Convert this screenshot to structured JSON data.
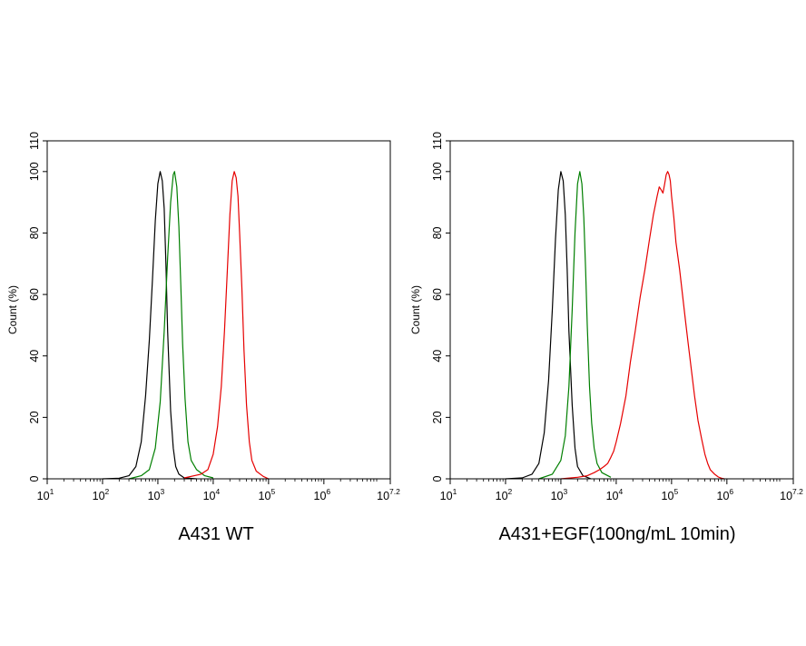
{
  "figure": {
    "background": "#ffffff"
  },
  "chart_data": [
    {
      "type": "line",
      "title": "A431 WT",
      "xlabel": "",
      "ylabel": "Count  (%)",
      "x_scale": "log",
      "xlim": [
        10,
        15848932
      ],
      "ylim": [
        0,
        110
      ],
      "x_ticks": [
        {
          "base": "10",
          "exp": "1"
        },
        {
          "base": "10",
          "exp": "2"
        },
        {
          "base": "10",
          "exp": "3"
        },
        {
          "base": "10",
          "exp": "4"
        },
        {
          "base": "10",
          "exp": "5"
        },
        {
          "base": "10",
          "exp": "6"
        },
        {
          "base": "10",
          "exp": "7.2"
        }
      ],
      "y_ticks": [
        "0",
        "20",
        "40",
        "60",
        "80",
        "100",
        "110"
      ],
      "grid": false,
      "series": [
        {
          "color": "#000000",
          "x": [
            100,
            200,
            300,
            400,
            500,
            600,
            700,
            800,
            900,
            1000,
            1100,
            1200,
            1300,
            1400,
            1500,
            1700,
            1900,
            2100,
            2400,
            3000,
            5000
          ],
          "y": [
            0,
            0.2,
            1,
            4,
            12,
            27,
            45,
            65,
            84,
            96,
            100,
            97,
            88,
            70,
            48,
            22,
            10,
            4,
            1.5,
            0.3,
            0
          ]
        },
        {
          "color": "#007f00",
          "x": [
            300,
            500,
            700,
            900,
            1100,
            1300,
            1500,
            1700,
            1900,
            2000,
            2200,
            2400,
            2600,
            2800,
            3100,
            3500,
            4000,
            5000,
            7000,
            10000
          ],
          "y": [
            0,
            1,
            3,
            10,
            25,
            48,
            72,
            90,
            99,
            100,
            95,
            82,
            63,
            44,
            26,
            12,
            6,
            3,
            1,
            0.3
          ]
        },
        {
          "color": "#e60000",
          "x": [
            3000,
            6000,
            8000,
            10000,
            12000,
            14000,
            16000,
            18000,
            20000,
            22000,
            24000,
            26000,
            28000,
            30000,
            33000,
            36000,
            40000,
            45000,
            50000,
            60000,
            80000,
            100000
          ],
          "y": [
            0.3,
            1.5,
            3,
            8,
            17,
            30,
            48,
            68,
            86,
            97,
            100,
            98,
            92,
            80,
            62,
            42,
            24,
            12,
            6,
            2.5,
            0.8,
            0
          ]
        }
      ]
    },
    {
      "type": "line",
      "title": "A431+EGF(100ng/mL 10min)",
      "xlabel": "",
      "ylabel": "Count  (%)",
      "x_scale": "log",
      "xlim": [
        10,
        15848932
      ],
      "ylim": [
        0,
        110
      ],
      "x_ticks": [
        {
          "base": "10",
          "exp": "1"
        },
        {
          "base": "10",
          "exp": "2"
        },
        {
          "base": "10",
          "exp": "3"
        },
        {
          "base": "10",
          "exp": "4"
        },
        {
          "base": "10",
          "exp": "5"
        },
        {
          "base": "10",
          "exp": "6"
        },
        {
          "base": "10",
          "exp": "7.2"
        }
      ],
      "y_ticks": [
        "0",
        "20",
        "40",
        "60",
        "80",
        "100",
        "110"
      ],
      "grid": false,
      "series": [
        {
          "color": "#000000",
          "x": [
            100,
            200,
            300,
            400,
            500,
            600,
            700,
            800,
            900,
            1000,
            1100,
            1200,
            1300,
            1400,
            1600,
            1800,
            2000,
            2500,
            3500
          ],
          "y": [
            0,
            0.3,
            1.5,
            5,
            15,
            32,
            55,
            78,
            94,
            100,
            97,
            86,
            68,
            48,
            24,
            10,
            4,
            1,
            0
          ]
        },
        {
          "color": "#007f00",
          "x": [
            400,
            700,
            1000,
            1200,
            1400,
            1600,
            1800,
            2000,
            2200,
            2400,
            2600,
            2800,
            3000,
            3300,
            3600,
            4000,
            4500,
            5500,
            8000
          ],
          "y": [
            0,
            1.5,
            6,
            14,
            30,
            55,
            80,
            96,
            100,
            96,
            85,
            68,
            50,
            30,
            18,
            10,
            5,
            2,
            0.5
          ]
        },
        {
          "color": "#e60000",
          "x": [
            1000,
            2000,
            3000,
            4000,
            5000,
            6000,
            7000,
            8000,
            9000,
            10000,
            12000,
            15000,
            18000,
            22000,
            27000,
            33000,
            40000,
            47000,
            55000,
            60000,
            65000,
            70000,
            75000,
            80000,
            85000,
            90000,
            95000,
            100000,
            110000,
            120000,
            140000,
            160000,
            180000,
            200000,
            230000,
            260000,
            300000,
            350000,
            400000,
            450000,
            500000,
            600000,
            700000,
            800000,
            900000
          ],
          "y": [
            0,
            0.5,
            1,
            2,
            3,
            4,
            5,
            7,
            9,
            12,
            18,
            27,
            38,
            48,
            59,
            68,
            78,
            86,
            92,
            95,
            94,
            93,
            96,
            99,
            100,
            99,
            97,
            92,
            85,
            77,
            68,
            59,
            51,
            44,
            35,
            27,
            19,
            13,
            8,
            5,
            3,
            1.5,
            0.6,
            0.2,
            0
          ]
        }
      ]
    }
  ]
}
